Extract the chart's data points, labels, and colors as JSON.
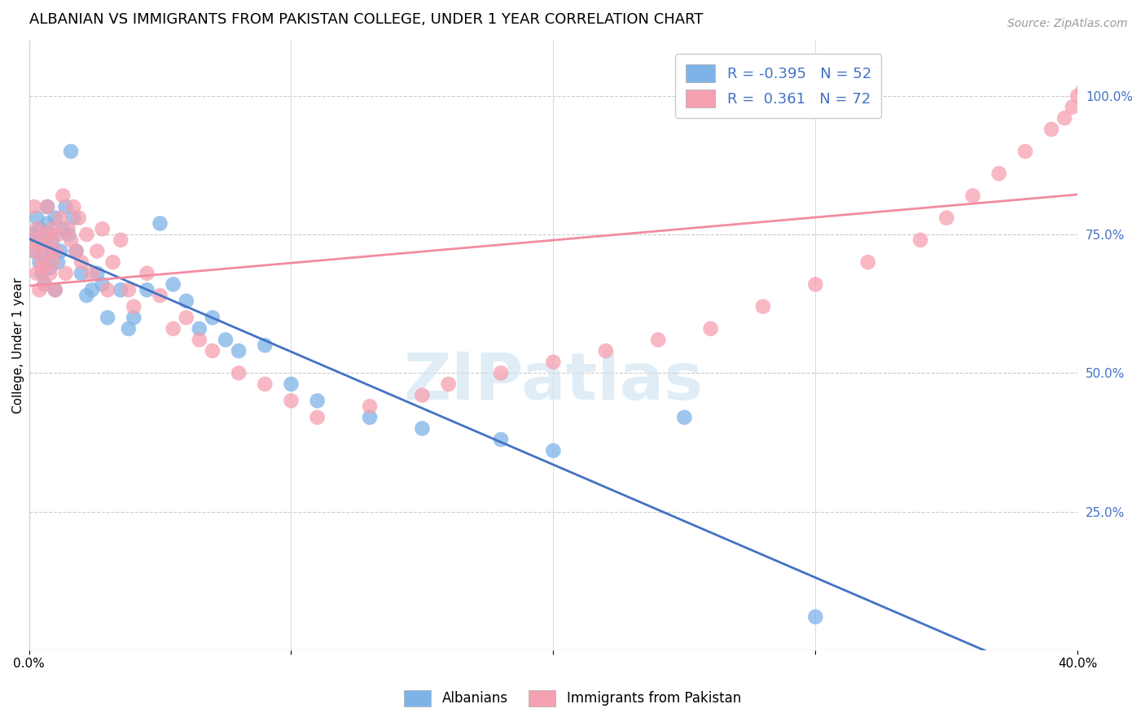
{
  "title": "ALBANIAN VS IMMIGRANTS FROM PAKISTAN COLLEGE, UNDER 1 YEAR CORRELATION CHART",
  "source": "Source: ZipAtlas.com",
  "ylabel": "College, Under 1 year",
  "xlim": [
    0.0,
    0.4
  ],
  "ylim": [
    0.0,
    1.1
  ],
  "yticks_right": [
    0.25,
    0.5,
    0.75,
    1.0
  ],
  "ytick_labels_right": [
    "25.0%",
    "50.0%",
    "75.0%",
    "100.0%"
  ],
  "legend_R_blue": "-0.395",
  "legend_N_blue": "52",
  "legend_R_pink": "0.361",
  "legend_N_pink": "72",
  "legend_label_blue": "Albanians",
  "legend_label_pink": "Immigrants from Pakistan",
  "color_blue": "#7EB3E8",
  "color_pink": "#F5A0B0",
  "color_line_blue": "#4472C4",
  "color_line_pink": "#F28CA0",
  "watermark": "ZIPatlas",
  "blue_x": [
    0.001,
    0.002,
    0.003,
    0.003,
    0.004,
    0.004,
    0.005,
    0.005,
    0.006,
    0.006,
    0.007,
    0.007,
    0.008,
    0.008,
    0.009,
    0.009,
    0.01,
    0.01,
    0.011,
    0.012,
    0.013,
    0.014,
    0.015,
    0.016,
    0.017,
    0.018,
    0.02,
    0.022,
    0.024,
    0.026,
    0.028,
    0.03,
    0.035,
    0.038,
    0.04,
    0.045,
    0.05,
    0.055,
    0.06,
    0.065,
    0.07,
    0.075,
    0.08,
    0.09,
    0.1,
    0.11,
    0.13,
    0.15,
    0.18,
    0.2,
    0.25,
    0.3
  ],
  "blue_y": [
    0.75,
    0.72,
    0.78,
    0.74,
    0.76,
    0.7,
    0.68,
    0.73,
    0.66,
    0.71,
    0.77,
    0.8,
    0.75,
    0.69,
    0.72,
    0.74,
    0.78,
    0.65,
    0.7,
    0.72,
    0.76,
    0.8,
    0.75,
    0.9,
    0.78,
    0.72,
    0.68,
    0.64,
    0.65,
    0.68,
    0.66,
    0.6,
    0.65,
    0.58,
    0.6,
    0.65,
    0.77,
    0.66,
    0.63,
    0.58,
    0.6,
    0.56,
    0.54,
    0.55,
    0.48,
    0.45,
    0.42,
    0.4,
    0.38,
    0.36,
    0.42,
    0.06
  ],
  "pink_x": [
    0.001,
    0.002,
    0.002,
    0.003,
    0.003,
    0.004,
    0.004,
    0.005,
    0.005,
    0.006,
    0.006,
    0.007,
    0.007,
    0.008,
    0.008,
    0.009,
    0.009,
    0.01,
    0.01,
    0.011,
    0.012,
    0.013,
    0.014,
    0.015,
    0.016,
    0.017,
    0.018,
    0.019,
    0.02,
    0.022,
    0.024,
    0.026,
    0.028,
    0.03,
    0.032,
    0.035,
    0.038,
    0.04,
    0.045,
    0.05,
    0.055,
    0.06,
    0.065,
    0.07,
    0.08,
    0.09,
    0.1,
    0.11,
    0.13,
    0.15,
    0.16,
    0.18,
    0.2,
    0.22,
    0.24,
    0.26,
    0.28,
    0.3,
    0.32,
    0.34,
    0.35,
    0.36,
    0.37,
    0.38,
    0.39,
    0.395,
    0.398,
    0.4,
    0.402,
    0.404,
    0.406,
    0.408
  ],
  "pink_y": [
    0.74,
    0.72,
    0.8,
    0.76,
    0.68,
    0.73,
    0.65,
    0.7,
    0.69,
    0.75,
    0.66,
    0.8,
    0.72,
    0.74,
    0.68,
    0.76,
    0.7,
    0.65,
    0.72,
    0.75,
    0.78,
    0.82,
    0.68,
    0.76,
    0.74,
    0.8,
    0.72,
    0.78,
    0.7,
    0.75,
    0.68,
    0.72,
    0.76,
    0.65,
    0.7,
    0.74,
    0.65,
    0.62,
    0.68,
    0.64,
    0.58,
    0.6,
    0.56,
    0.54,
    0.5,
    0.48,
    0.45,
    0.42,
    0.44,
    0.46,
    0.48,
    0.5,
    0.52,
    0.54,
    0.56,
    0.58,
    0.62,
    0.66,
    0.7,
    0.74,
    0.78,
    0.82,
    0.86,
    0.9,
    0.94,
    0.96,
    0.98,
    1.0,
    1.01,
    1.0,
    0.99,
    0.98
  ]
}
